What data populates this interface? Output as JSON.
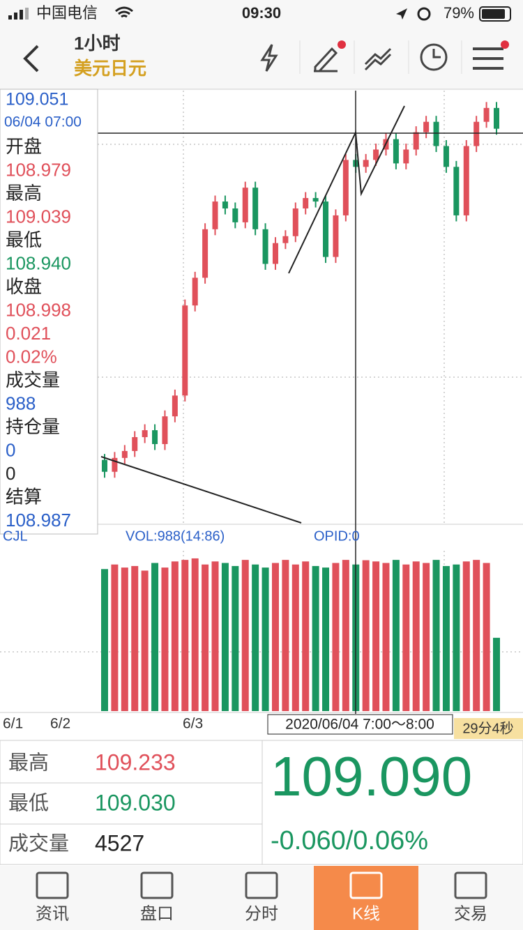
{
  "status_bar": {
    "carrier": "中国电信",
    "time": "09:30",
    "battery": "79%"
  },
  "header": {
    "title": "1小时",
    "subtitle": "美元日元"
  },
  "info_panel": {
    "price": "109.051",
    "time": "06/04 07:00",
    "items": [
      {
        "label": "开盘",
        "value": "108.979"
      },
      {
        "label": "最高",
        "value": "109.039"
      },
      {
        "label": "最低",
        "value": "108.940"
      },
      {
        "label": "收盘",
        "value": "108.998"
      }
    ],
    "change": "0.021",
    "change_pct": "0.02%",
    "items2": [
      {
        "label": "成交量",
        "value": "988"
      },
      {
        "label": "持仓量",
        "value": "0"
      }
    ],
    "extra": "0",
    "settle_label": "结算",
    "settle_value": "108.987"
  },
  "chart_data": {
    "type": "candlestick",
    "up_color": "#e0505a",
    "down_color": "#1a9660",
    "ylim": [
      108.26,
      109.136
    ],
    "vlim": [
      0,
      1050
    ],
    "candles": [
      [
        108.39,
        108.402,
        108.354,
        108.366
      ],
      [
        108.366,
        108.406,
        108.354,
        108.394
      ],
      [
        108.394,
        108.42,
        108.382,
        108.408
      ],
      [
        108.408,
        108.448,
        108.396,
        108.436
      ],
      [
        108.436,
        108.462,
        108.424,
        108.45
      ],
      [
        108.45,
        108.462,
        108.41,
        108.422
      ],
      [
        108.422,
        108.49,
        108.41,
        108.478
      ],
      [
        108.478,
        108.532,
        108.466,
        108.52
      ],
      [
        108.52,
        108.714,
        108.508,
        108.702
      ],
      [
        108.702,
        108.77,
        108.69,
        108.758
      ],
      [
        108.758,
        108.868,
        108.746,
        108.856
      ],
      [
        108.856,
        108.924,
        108.844,
        108.912
      ],
      [
        108.912,
        108.924,
        108.886,
        108.898
      ],
      [
        108.898,
        108.91,
        108.858,
        108.87
      ],
      [
        108.87,
        108.952,
        108.858,
        108.94
      ],
      [
        108.94,
        108.952,
        108.844,
        108.856
      ],
      [
        108.856,
        108.868,
        108.774,
        108.786
      ],
      [
        108.786,
        108.84,
        108.774,
        108.828
      ],
      [
        108.828,
        108.854,
        108.816,
        108.842
      ],
      [
        108.842,
        108.91,
        108.83,
        108.898
      ],
      [
        108.898,
        108.931,
        108.886,
        108.919
      ],
      [
        108.919,
        108.931,
        108.9,
        108.912
      ],
      [
        108.912,
        108.924,
        108.788,
        108.8
      ],
      [
        108.8,
        108.896,
        108.788,
        108.884
      ],
      [
        108.884,
        109.008,
        108.872,
        108.996
      ],
      [
        108.996,
        109.008,
        108.97,
        108.982
      ],
      [
        108.982,
        109.008,
        108.97,
        108.996
      ],
      [
        108.996,
        109.029,
        108.984,
        109.017
      ],
      [
        109.017,
        109.05,
        109.005,
        109.038
      ],
      [
        109.038,
        109.05,
        108.977,
        108.989
      ],
      [
        108.989,
        109.029,
        108.977,
        109.017
      ],
      [
        109.017,
        109.064,
        109.005,
        109.052
      ],
      [
        109.052,
        109.085,
        109.04,
        109.073
      ],
      [
        109.073,
        109.085,
        109.012,
        109.024
      ],
      [
        109.024,
        109.036,
        108.97,
        108.982
      ],
      [
        108.982,
        108.994,
        108.872,
        108.884
      ],
      [
        108.884,
        109.036,
        108.872,
        109.024
      ],
      [
        109.024,
        109.085,
        109.012,
        109.073
      ],
      [
        109.073,
        109.113,
        109.061,
        109.101
      ],
      [
        109.101,
        109.113,
        109.047,
        109.059
      ]
    ],
    "volumes": [
      930,
      960,
      940,
      950,
      920,
      970,
      940,
      980,
      990,
      1000,
      960,
      980,
      970,
      950,
      990,
      960,
      940,
      970,
      990,
      960,
      980,
      950,
      940,
      970,
      990,
      960,
      988,
      980,
      970,
      990,
      960,
      980,
      970,
      990,
      950,
      960,
      980,
      990,
      970,
      480
    ],
    "volume_label": "CJL",
    "vol_text": "VOL:988(14:86)",
    "opid_text": "OPID:0",
    "x_labels": [
      "6/1",
      "6/2",
      "6/3"
    ],
    "cursor_label": "2020/06/04 7:00～8:00",
    "countdown": "29分4秒"
  },
  "stats": {
    "rows": [
      {
        "label": "最高",
        "value": "109.233"
      },
      {
        "label": "最低",
        "value": "109.030"
      },
      {
        "label": "成交量",
        "value": "4527"
      }
    ],
    "price": "109.090",
    "change": "-0.060/0.06%"
  },
  "tabs": [
    "资讯",
    "盘口",
    "分时",
    "K线",
    "交易"
  ]
}
